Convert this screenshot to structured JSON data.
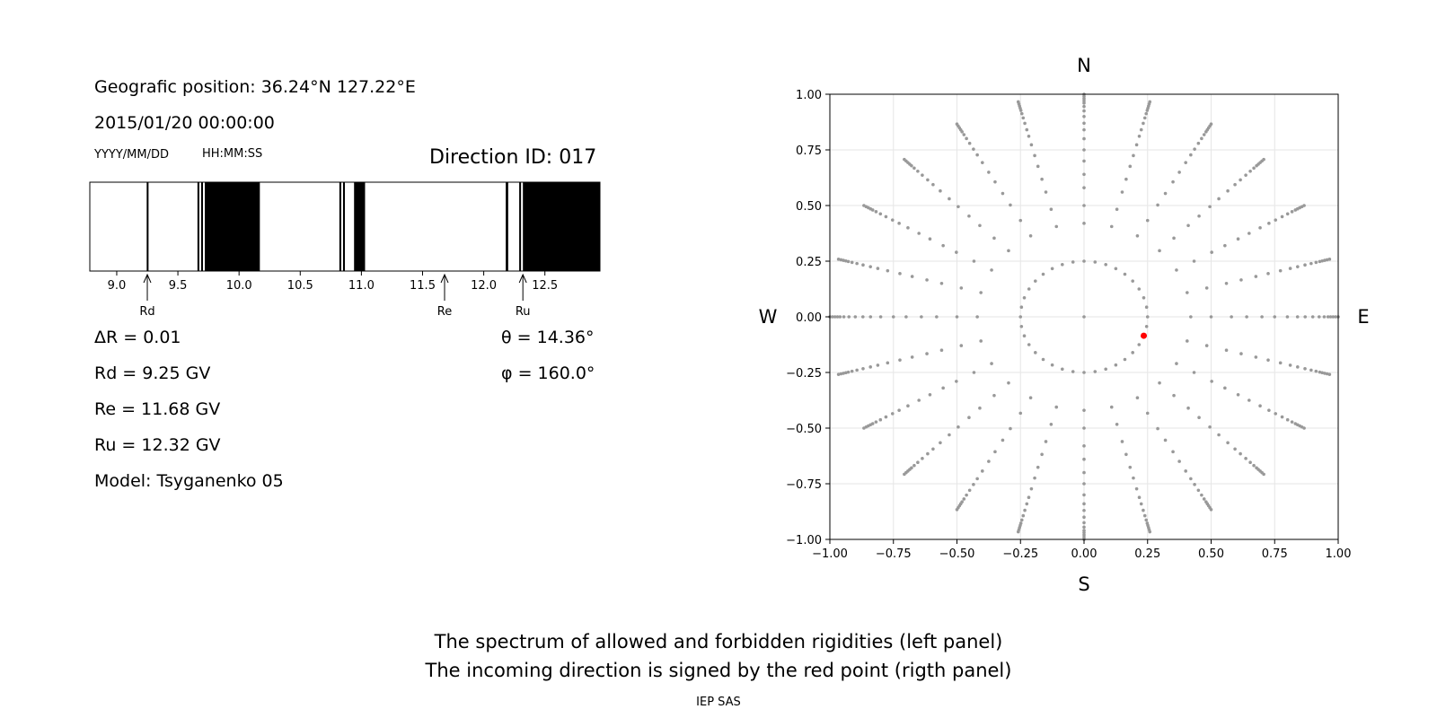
{
  "info": {
    "position_label": "Geografic position: 36.24°N 127.22°E",
    "datetime": "2015/01/20 00:00:00",
    "date_format": "YYYY/MM/DD",
    "time_format": "HH:MM:SS",
    "direction_id": "Direction ID: 017",
    "delta_r": "ΔR = 0.01",
    "rd": "Rd = 9.25 GV",
    "re": "Re = 11.68 GV",
    "ru": "Ru = 12.32 GV",
    "model": "Model: Tsyganenko 05",
    "theta": "θ = 14.36°",
    "phi": "φ = 160.0°"
  },
  "captions": {
    "line1": "The spectrum of allowed and forbidden rigidities (left panel)",
    "line2": "The incoming direction is signed by the red point (rigth panel)",
    "footer": "IEP SAS"
  },
  "chart_data": [
    {
      "type": "spectrum",
      "xlim": [
        8.78,
        12.95
      ],
      "xticks": [
        "9.0",
        "9.5",
        "10.0",
        "10.5",
        "11.0",
        "11.5",
        "12.0",
        "12.5"
      ],
      "forbidden_bands": [
        [
          9.245,
          9.26
        ],
        [
          9.66,
          9.675
        ],
        [
          9.69,
          9.705
        ],
        [
          9.72,
          10.17
        ],
        [
          10.82,
          10.835
        ],
        [
          10.85,
          10.865
        ],
        [
          10.94,
          11.03
        ],
        [
          12.18,
          12.2
        ],
        [
          12.29,
          12.305
        ],
        [
          12.32,
          12.95
        ]
      ],
      "markers": [
        {
          "label": "Rd",
          "value": 9.25
        },
        {
          "label": "Re",
          "value": 11.68
        },
        {
          "label": "Ru",
          "value": 12.32
        }
      ]
    },
    {
      "type": "scatter",
      "xlim": [
        -1.0,
        1.0
      ],
      "ylim": [
        -1.0,
        1.0
      ],
      "xticks": [
        "−1.00",
        "−0.75",
        "−0.50",
        "−0.25",
        "0.00",
        "0.25",
        "0.50",
        "0.75",
        "1.00"
      ],
      "yticks": [
        "1.00",
        "0.75",
        "0.50",
        "0.25",
        "0.00",
        "−0.25",
        "−0.50",
        "−0.75",
        "−1.00"
      ],
      "grid": true,
      "compass": {
        "north": "N",
        "south": "S",
        "west": "W",
        "east": "E"
      },
      "grid_points": {
        "rings": [
          0.0,
          0.25,
          0.42,
          0.5,
          0.58,
          0.64,
          0.7,
          0.75,
          0.8,
          0.84,
          0.87,
          0.9,
          0.925,
          0.945,
          0.96,
          0.97,
          0.98,
          0.99,
          1.0
        ],
        "angle_step_deg": 15,
        "inner_ring_step_deg": 10,
        "color": "#999999"
      },
      "highlight": {
        "x": 0.235,
        "y": -0.085,
        "color": "#ff0000"
      }
    }
  ]
}
